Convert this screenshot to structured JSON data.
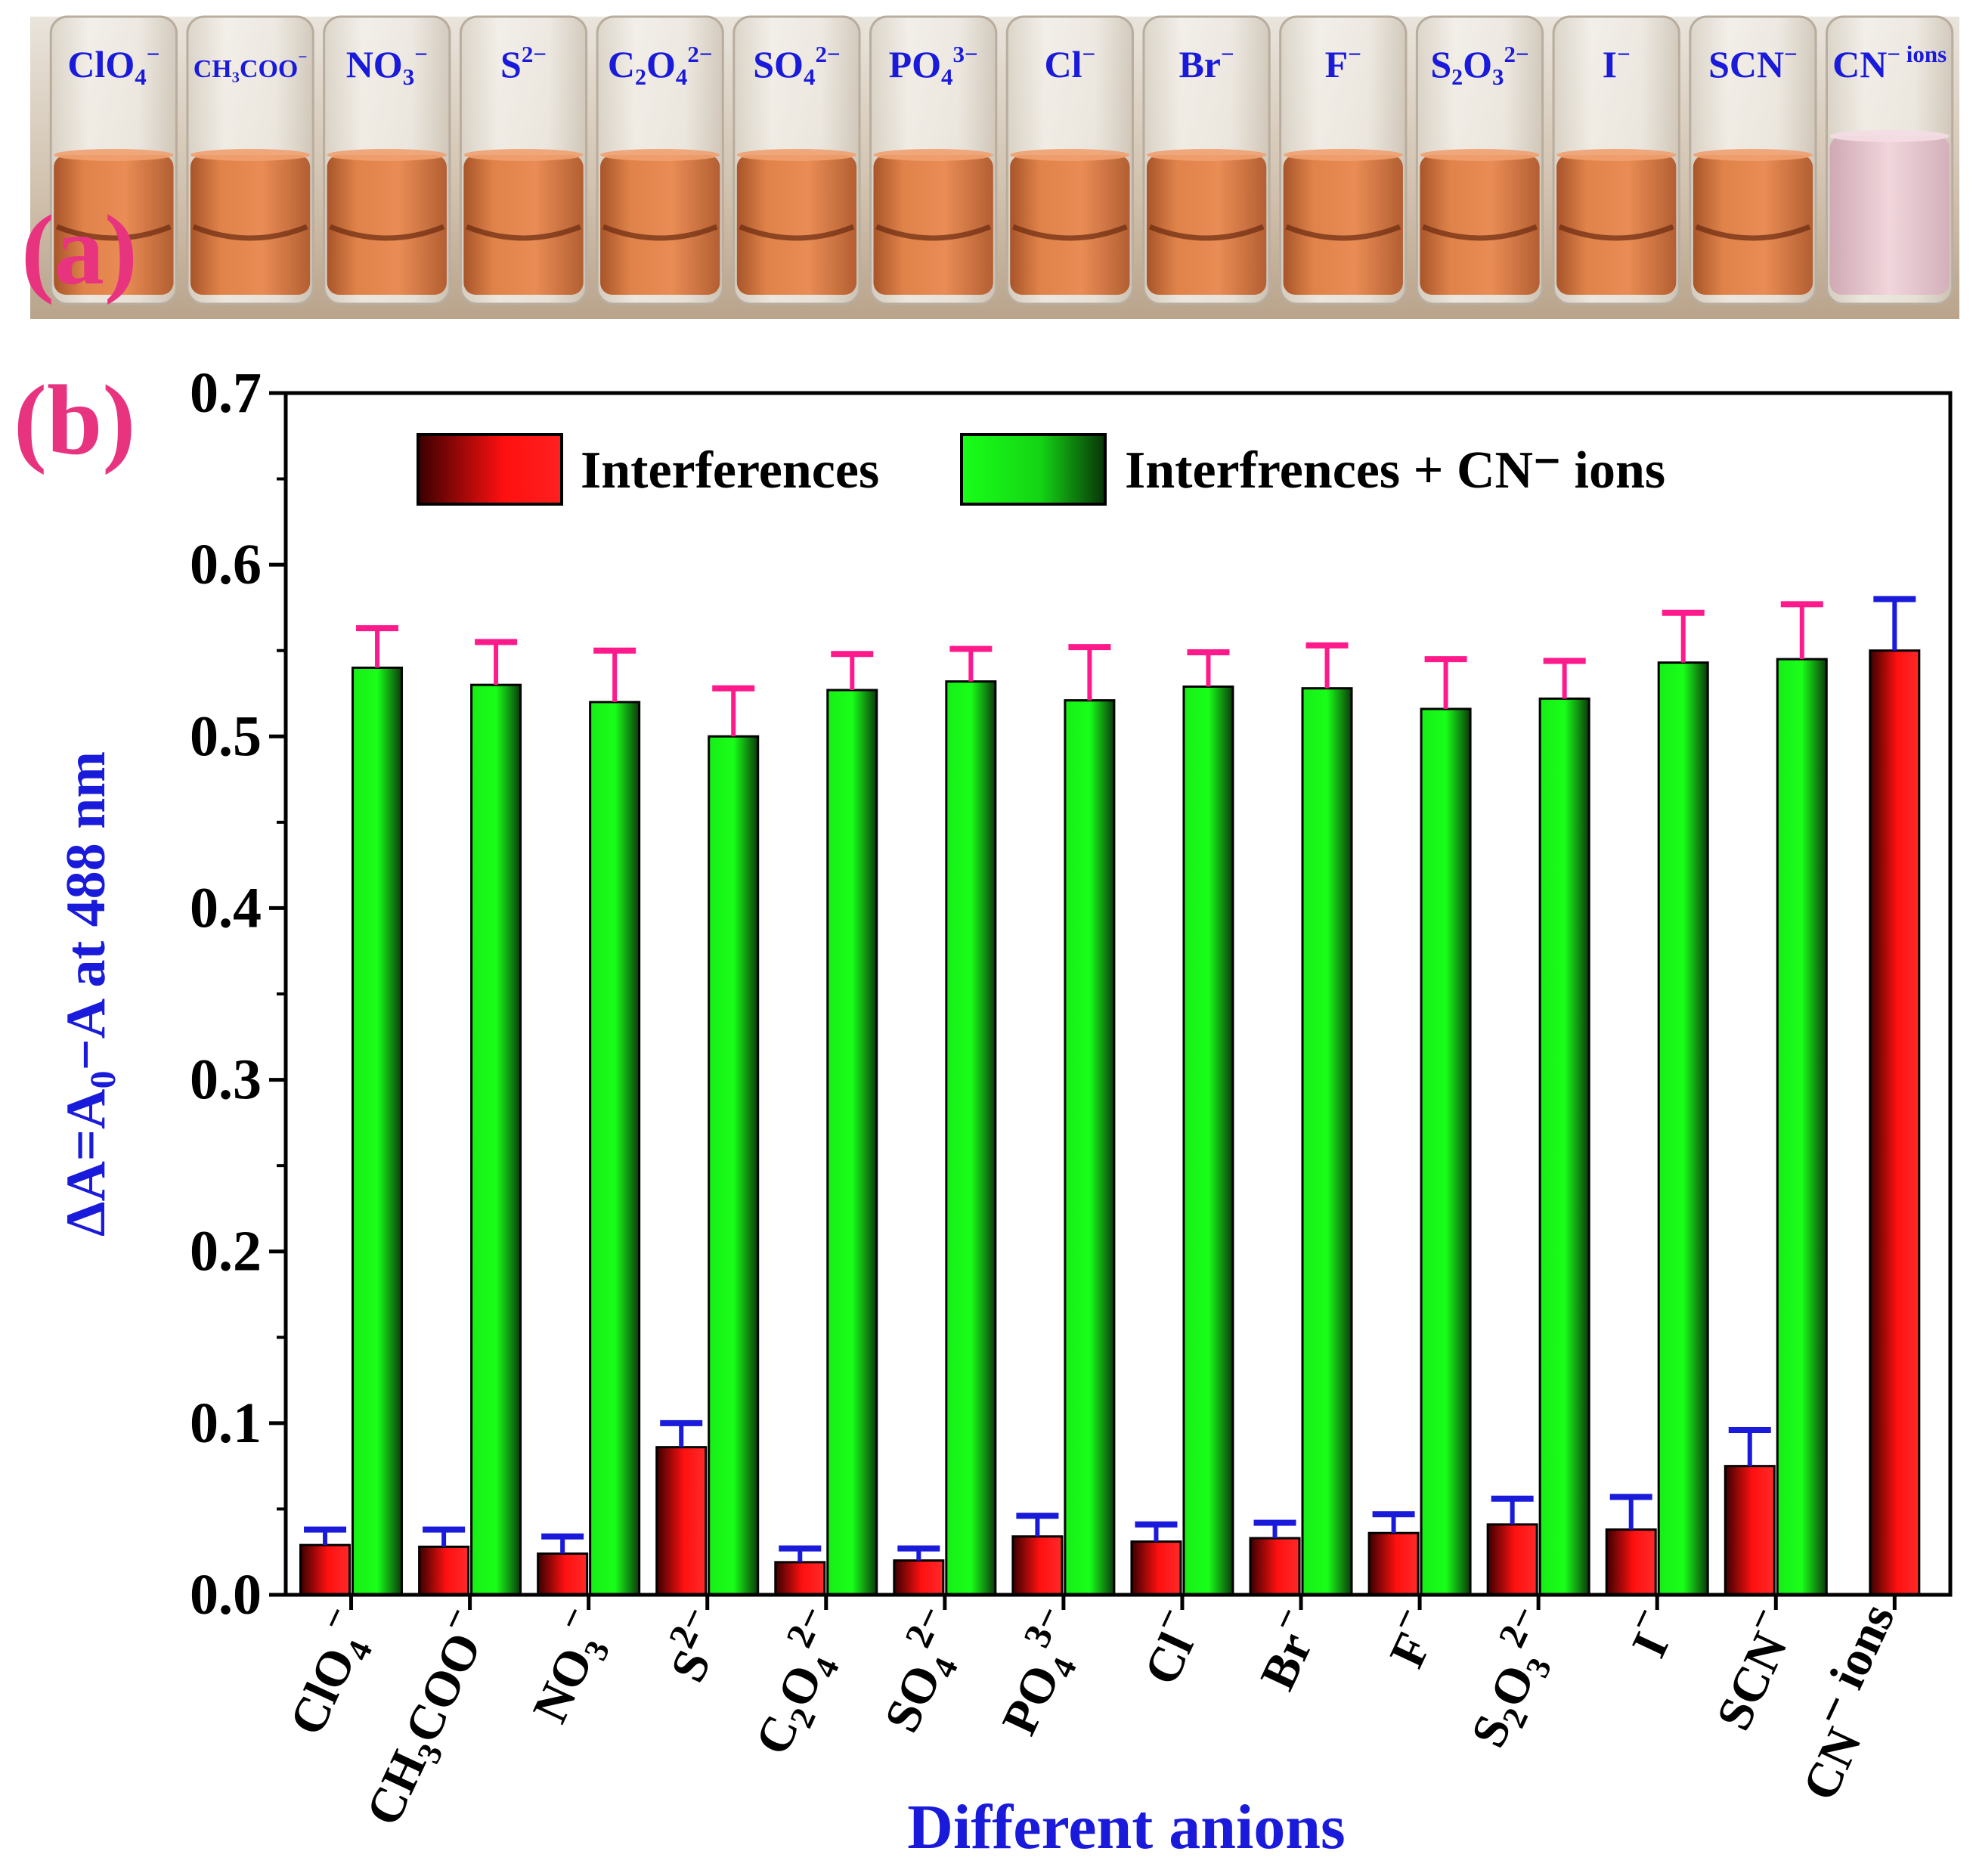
{
  "panel_a": {
    "letter": "(a)",
    "vial_labels": [
      {
        "base": "ClO",
        "sub": "4",
        "sup": "−"
      },
      {
        "base": "CH₃COO",
        "sub": "",
        "sup": "−"
      },
      {
        "base": "NO",
        "sub": "3",
        "sup": "−"
      },
      {
        "base": "S",
        "sub": "",
        "sup": "2−"
      },
      {
        "base": "C₂O",
        "sub": "4",
        "sup": "2−"
      },
      {
        "base": "SO",
        "sub": "4",
        "sup": "2−"
      },
      {
        "base": "PO",
        "sub": "4",
        "sup": "3−"
      },
      {
        "base": "Cl",
        "sub": "",
        "sup": "−"
      },
      {
        "base": "Br",
        "sub": "",
        "sup": "−"
      },
      {
        "base": "F",
        "sub": "",
        "sup": "−"
      },
      {
        "base": "S₂O",
        "sub": "3",
        "sup": "2−"
      },
      {
        "base": "I",
        "sub": "",
        "sup": "−"
      },
      {
        "base": "SCN",
        "sub": "",
        "sup": "−"
      },
      {
        "base": "CN",
        "sub": "",
        "sup": "− ions"
      }
    ],
    "colors": {
      "solution_orange": "#d9773f",
      "solution_pink": "#e9c6cf",
      "background": "#c9b9a6"
    }
  },
  "panel_b": {
    "letter": "(b)"
  },
  "chart_data": {
    "type": "bar",
    "title": "",
    "xlabel": "Different anions",
    "ylabel": "ΔA=A₀−A at 488 nm",
    "ylim": [
      0.0,
      0.7
    ],
    "yticks": [
      "0.0",
      "0.1",
      "0.2",
      "0.3",
      "0.4",
      "0.5",
      "0.6",
      "0.7"
    ],
    "categories": [
      {
        "base": "ClO",
        "sub": "4",
        "sup": "−"
      },
      {
        "base": "CH",
        "sub": "3",
        "mid": "COO",
        "sup": "−"
      },
      {
        "base": "NO",
        "sub": "3",
        "sup": "−"
      },
      {
        "base": "S",
        "sub": "",
        "sup": "2−"
      },
      {
        "base": "C",
        "sub": "2",
        "mid": "O",
        "sub2": "4",
        "sup": "2−"
      },
      {
        "base": "SO",
        "sub": "4",
        "sup": "2−"
      },
      {
        "base": "PO",
        "sub": "4",
        "sup": "3−"
      },
      {
        "base": "Cl",
        "sub": "",
        "sup": "−"
      },
      {
        "base": "Br",
        "sub": "",
        "sup": "−"
      },
      {
        "base": "F",
        "sub": "",
        "sup": "−"
      },
      {
        "base": "S",
        "sub": "2",
        "mid": "O",
        "sub2": "3",
        "sup": "2−"
      },
      {
        "base": "I",
        "sub": "",
        "sup": "−"
      },
      {
        "base": "SCN",
        "sub": "",
        "sup": "−"
      },
      {
        "base": "CN",
        "sub": "",
        "sup": "− ions"
      }
    ],
    "legend": [
      {
        "label": "Interferences",
        "color": "#ff1a1a"
      },
      {
        "label": "Interfrences + CN⁻ ions",
        "color": "#1aff1a"
      }
    ],
    "legend_position": "top",
    "series": [
      {
        "name": "Interferences",
        "values": [
          0.029,
          0.028,
          0.024,
          0.086,
          0.019,
          0.02,
          0.034,
          0.031,
          0.033,
          0.036,
          0.041,
          0.038,
          0.075,
          0.55
        ],
        "errors": [
          0.009,
          0.01,
          0.01,
          0.014,
          0.008,
          0.007,
          0.012,
          0.01,
          0.009,
          0.011,
          0.015,
          0.019,
          0.021,
          0.03
        ],
        "error_color": "#1a1adb"
      },
      {
        "name": "Interfrences + CN⁻ ions",
        "values": [
          0.54,
          0.53,
          0.52,
          0.5,
          0.527,
          0.532,
          0.521,
          0.529,
          0.528,
          0.516,
          0.522,
          0.543,
          0.545,
          null
        ],
        "errors": [
          0.023,
          0.025,
          0.03,
          0.028,
          0.021,
          0.019,
          0.031,
          0.02,
          0.025,
          0.029,
          0.022,
          0.029,
          0.032,
          null
        ],
        "error_color": "#ff1a8c"
      }
    ]
  }
}
